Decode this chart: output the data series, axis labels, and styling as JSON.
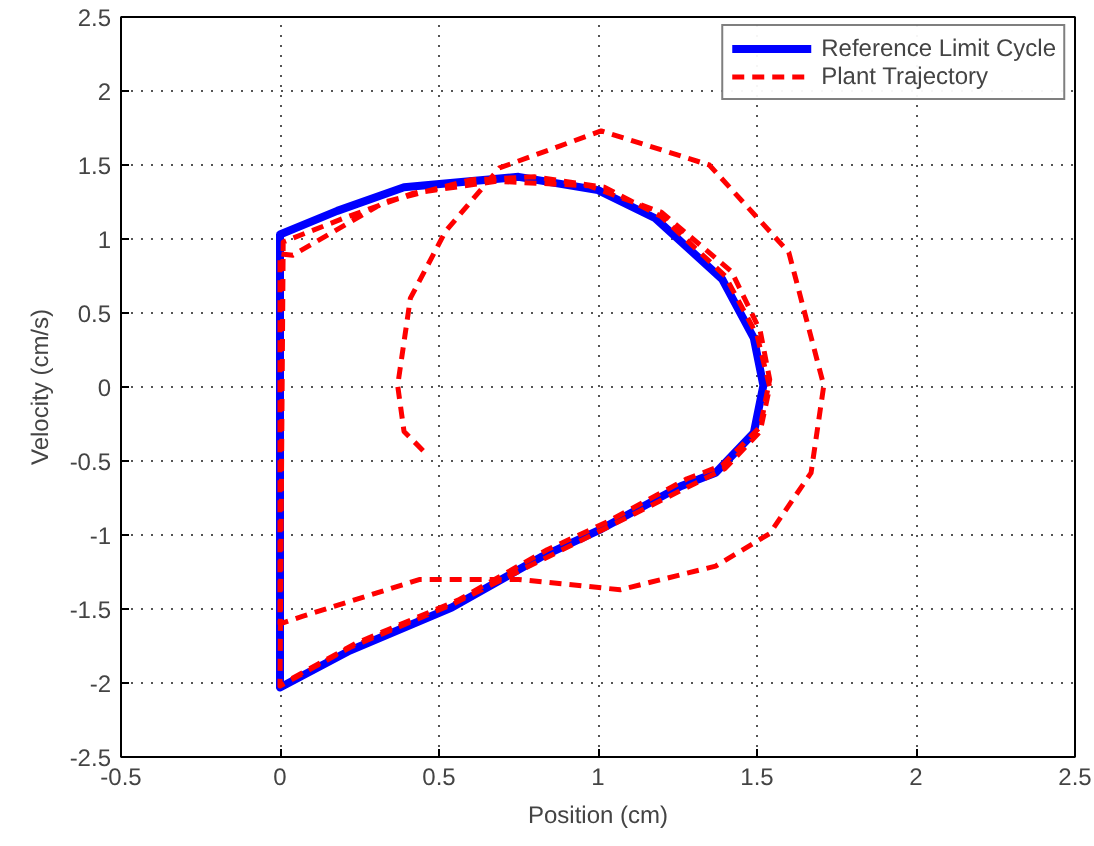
{
  "chart_data": {
    "type": "line",
    "xlabel": "Position (cm)",
    "ylabel": "Velocity (cm/s)",
    "xlim": [
      -0.5,
      2.5
    ],
    "ylim": [
      -2.5,
      2.5
    ],
    "xticks": [
      -0.5,
      0,
      0.5,
      1,
      1.5,
      2,
      2.5
    ],
    "yticks": [
      -2.5,
      -2,
      -1.5,
      -1,
      -0.5,
      0,
      0.5,
      1,
      1.5,
      2,
      2.5
    ],
    "grid": true,
    "legend": "top right",
    "series": [
      {
        "name": "Reference Limit Cycle",
        "color": "#0000ff",
        "line_style": "solid",
        "x": [
          0,
          0,
          0.18,
          0.39,
          0.75,
          1.0,
          1.18,
          1.39,
          1.49,
          1.52,
          1.49,
          1.37,
          1.26,
          1.01,
          0.82,
          0.54,
          0.22,
          0,
          0
        ],
        "values": [
          -0.5,
          1.03,
          1.19,
          1.35,
          1.42,
          1.33,
          1.14,
          0.73,
          0.33,
          0.01,
          -0.31,
          -0.58,
          -0.67,
          -0.96,
          -1.15,
          -1.49,
          -1.78,
          -2.03,
          -0.4
        ]
      },
      {
        "name": "Plant Trajectory",
        "color": "#ff0000",
        "line_style": "dashed",
        "x": [
          0.45,
          0.39,
          0.37,
          0.41,
          0.52,
          0.69,
          1.01,
          1.35,
          1.6,
          1.71,
          1.67,
          1.54,
          1.37,
          1.07,
          0.75,
          0.44,
          0.07,
          0,
          0,
          0.04,
          0.33,
          0.6,
          0.8,
          1.02,
          1.2,
          1.4,
          1.5,
          1.54,
          1.51,
          1.4,
          1.26,
          1.0,
          0.54,
          0.22,
          0,
          0.01,
          0.2,
          0.42,
          0.68,
          0.97,
          1.2,
          1.42,
          1.51,
          1.54,
          1.51,
          1.39,
          1.28,
          1.03,
          0.84,
          0.56,
          0.24,
          0.02
        ],
        "values": [
          -0.43,
          -0.3,
          0.01,
          0.6,
          1.05,
          1.48,
          1.73,
          1.5,
          0.91,
          0.01,
          -0.58,
          -0.99,
          -1.21,
          -1.37,
          -1.3,
          -1.3,
          -1.55,
          -1.6,
          0.9,
          0.89,
          1.25,
          1.4,
          1.42,
          1.35,
          1.15,
          0.75,
          0.35,
          0.0,
          -0.3,
          -0.55,
          -0.7,
          -0.98,
          -1.47,
          -1.76,
          -2.02,
          0.98,
          1.14,
          1.31,
          1.39,
          1.36,
          1.18,
          0.78,
          0.38,
          0.05,
          -0.27,
          -0.53,
          -0.62,
          -0.91,
          -1.1,
          -1.44,
          -1.73,
          -1.99
        ]
      }
    ]
  }
}
